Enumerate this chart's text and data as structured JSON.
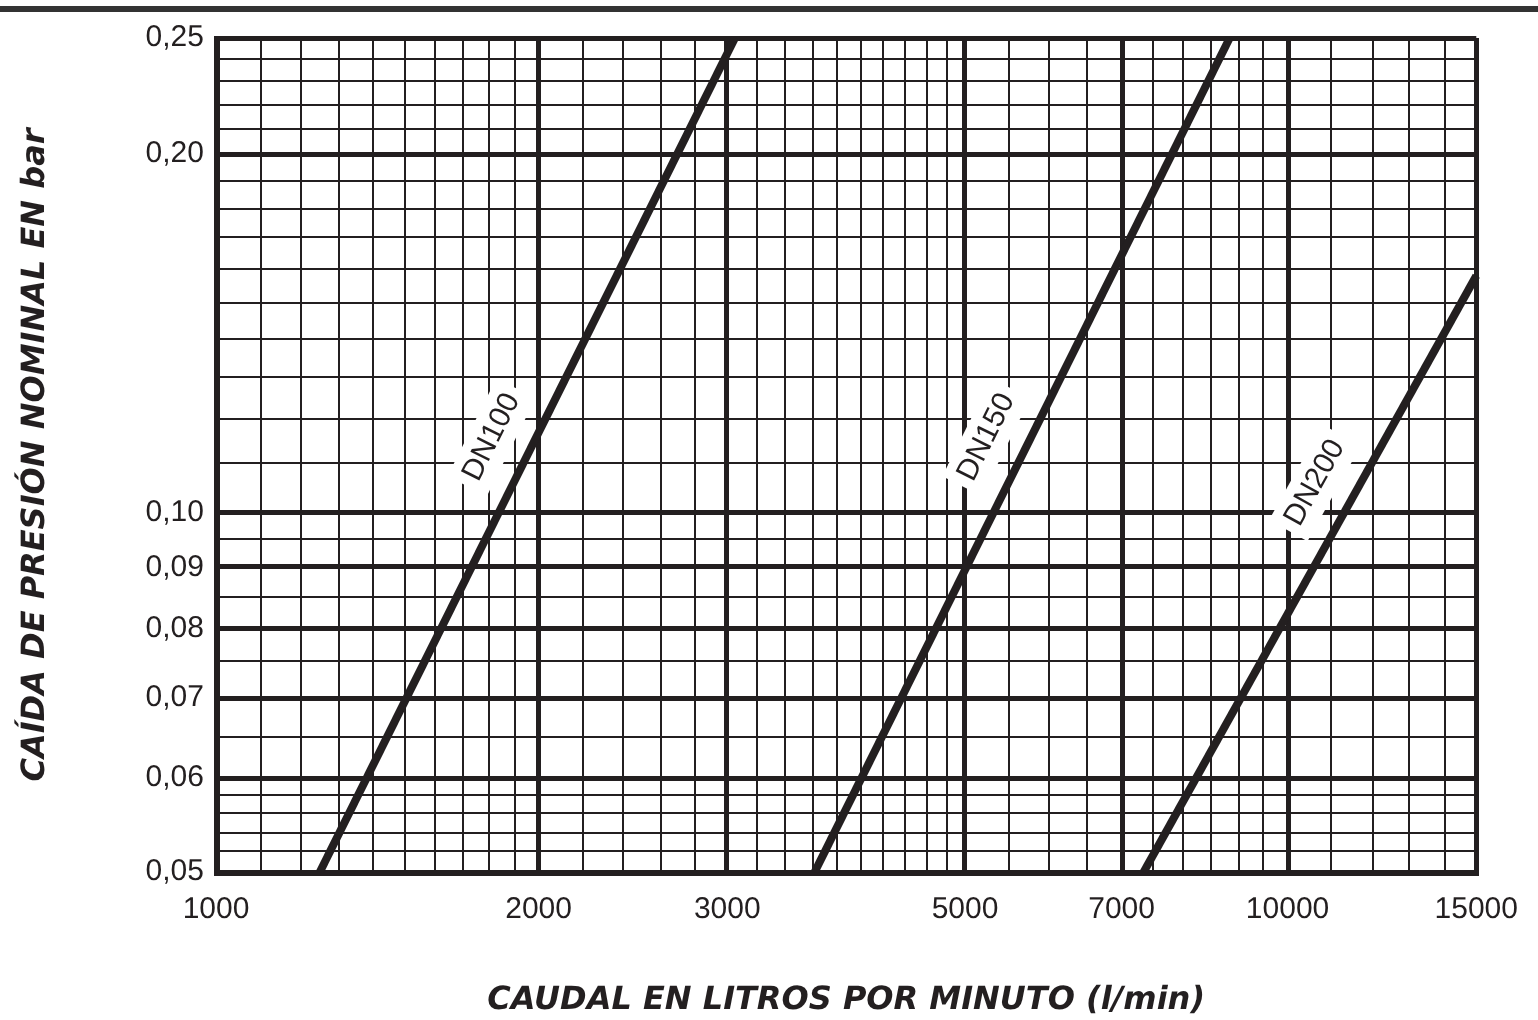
{
  "chart_data": {
    "type": "line",
    "xlabel": "CAUDAL EN LITROS POR MINUTO (l/min)",
    "ylabel": "CAÍDA DE PRESIÓN NOMINAL EN bar",
    "log": "xy",
    "grid": true,
    "marker": "none",
    "line_style": "solid",
    "xlim": [
      1000,
      15000
    ],
    "ylim": [
      0.05,
      0.25
    ],
    "xticks": [
      1000,
      {
        "value": 1100,
        "label": null
      },
      {
        "value": 1200,
        "label": null
      },
      {
        "value": 1300,
        "label": null
      },
      {
        "value": 1400,
        "label": null
      },
      {
        "value": 1500,
        "label": null
      },
      {
        "value": 1600,
        "label": null
      },
      {
        "value": 1700,
        "label": null
      },
      {
        "value": 1800,
        "label": null
      },
      {
        "value": 1900,
        "label": null
      },
      2000,
      {
        "value": 2200,
        "label": null
      },
      {
        "value": 2400,
        "label": null
      },
      {
        "value": 2600,
        "label": null
      },
      {
        "value": 2800,
        "label": null
      },
      3000,
      {
        "value": 3200,
        "label": null
      },
      {
        "value": 3400,
        "label": null
      },
      {
        "value": 3600,
        "label": null
      },
      {
        "value": 3800,
        "label": null
      },
      {
        "value": 4000,
        "label": null
      },
      {
        "value": 4200,
        "label": null
      },
      {
        "value": 4400,
        "label": null
      },
      {
        "value": 4600,
        "label": null
      },
      {
        "value": 4800,
        "label": null
      },
      5000,
      {
        "value": 5500,
        "label": null
      },
      {
        "value": 6000,
        "label": null
      },
      {
        "value": 6500,
        "label": null
      },
      7000,
      {
        "value": 7500,
        "label": null
      },
      {
        "value": 8000,
        "label": null
      },
      {
        "value": 8500,
        "label": null
      },
      {
        "value": 9000,
        "label": null
      },
      {
        "value": 9500,
        "label": null
      },
      10000,
      {
        "value": 11000,
        "label": null
      },
      {
        "value": 12000,
        "label": null
      },
      {
        "value": 13000,
        "label": null
      },
      {
        "value": 14000,
        "label": null
      },
      15000
    ],
    "yticks": [
      {
        "value": 0.05,
        "label": "0,05"
      },
      {
        "value": 0.052,
        "label": null
      },
      {
        "value": 0.054,
        "label": null
      },
      {
        "value": 0.056,
        "label": null
      },
      {
        "value": 0.058,
        "label": null
      },
      {
        "value": 0.06,
        "label": "0,06"
      },
      {
        "value": 0.065,
        "label": null
      },
      {
        "value": 0.07,
        "label": "0,07"
      },
      {
        "value": 0.075,
        "label": null
      },
      {
        "value": 0.08,
        "label": "0,08"
      },
      {
        "value": 0.085,
        "label": null
      },
      {
        "value": 0.09,
        "label": "0,09"
      },
      {
        "value": 0.095,
        "label": null
      },
      {
        "value": 0.1,
        "label": "0,10"
      },
      {
        "value": 0.11,
        "label": null
      },
      {
        "value": 0.12,
        "label": null
      },
      {
        "value": 0.13,
        "label": null
      },
      {
        "value": 0.14,
        "label": null
      },
      {
        "value": 0.15,
        "label": null
      },
      {
        "value": 0.16,
        "label": null
      },
      {
        "value": 0.17,
        "label": null
      },
      {
        "value": 0.18,
        "label": null
      },
      {
        "value": 0.19,
        "label": null
      },
      {
        "value": 0.2,
        "label": "0,20"
      },
      {
        "value": 0.21,
        "label": null
      },
      {
        "value": 0.22,
        "label": null
      },
      {
        "value": 0.23,
        "label": null
      },
      {
        "value": 0.24,
        "label": null
      },
      {
        "value": 0.25,
        "label": "0,25"
      }
    ],
    "series": [
      {
        "name": "DN100",
        "color": "#231f20",
        "x": [
          1250,
          3050
        ],
        "values": [
          0.05,
          0.25
        ]
      },
      {
        "name": "DN150",
        "color": "#231f20",
        "x": [
          3620,
          8830
        ],
        "values": [
          0.05,
          0.25
        ]
      },
      {
        "name": "DN200",
        "color": "#231f20",
        "x": [
          7340,
          15000
        ],
        "values": [
          0.05,
          0.158
        ]
      }
    ]
  }
}
